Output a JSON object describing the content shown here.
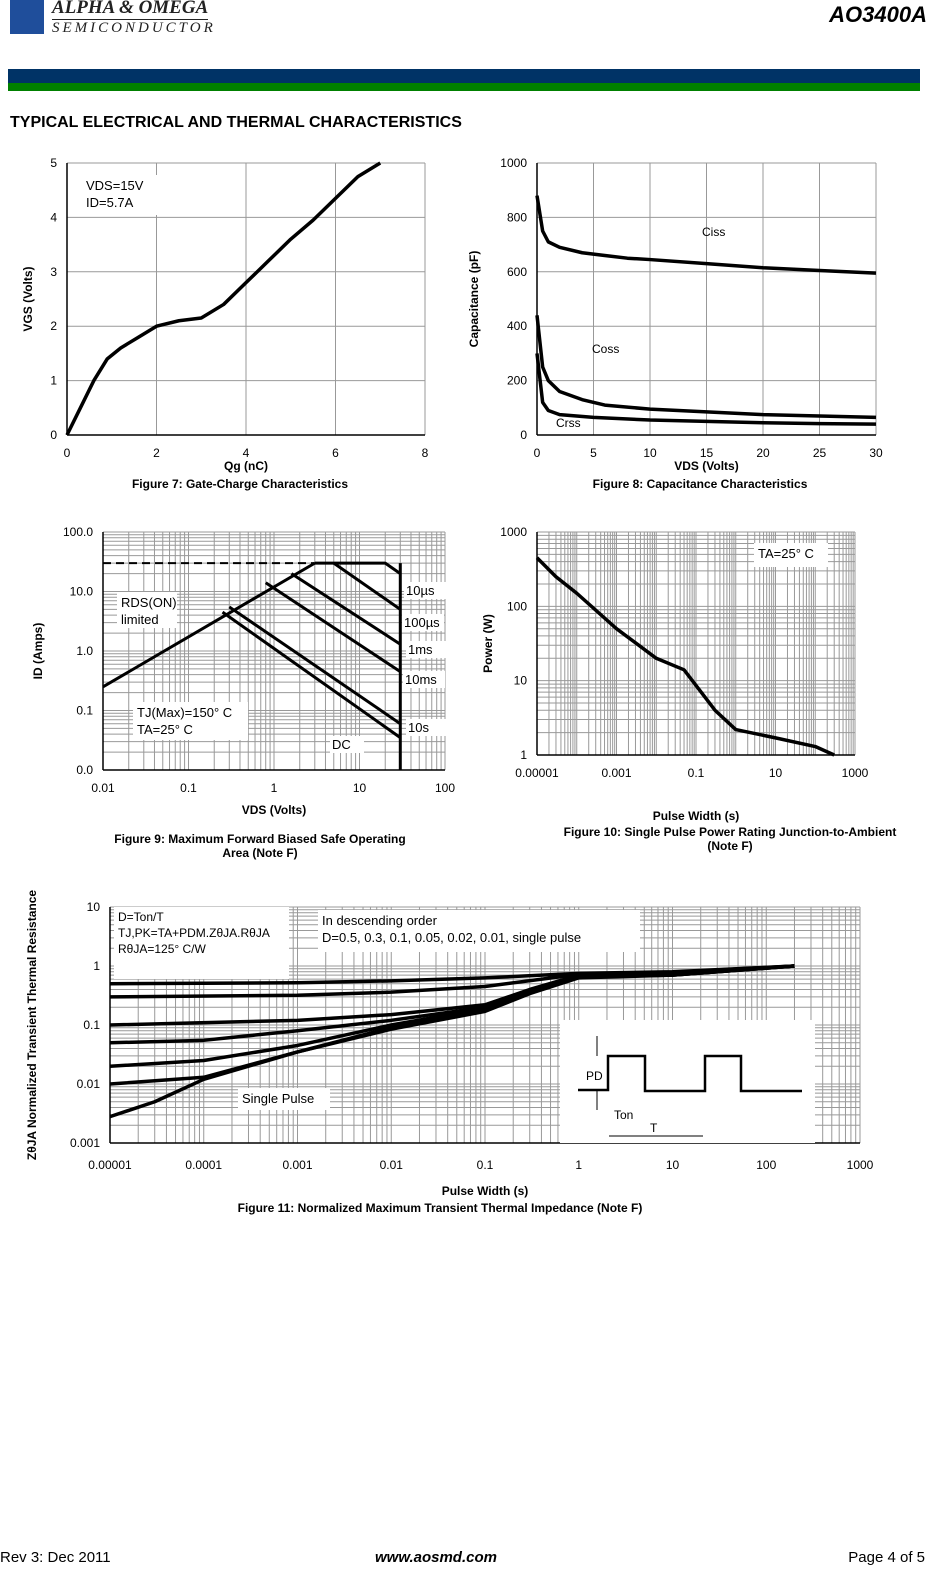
{
  "header": {
    "brand_line1": "ALPHA & OMEGA",
    "brand_line2": "SEMICONDUCTOR",
    "part_number": "AO3400A"
  },
  "section_title": "TYPICAL ELECTRICAL AND THERMAL CHARACTERISTICS",
  "colors": {
    "header_blue": "#003366",
    "header_green": "#008000",
    "logo_blue": "#1f4e9b"
  },
  "chart_data": [
    {
      "id": "fig7",
      "type": "line",
      "caption": "Figure 7: Gate-Charge Characteristics",
      "xlabel": "Qg (nC)",
      "ylabel": "VGS (Volts)",
      "xscale": "linear",
      "yscale": "linear",
      "xlim": [
        0,
        8
      ],
      "ylim": [
        0,
        5
      ],
      "xticks": [
        0,
        2,
        4,
        6,
        8
      ],
      "xticklabels": [
        "0",
        "2",
        "4",
        "6",
        "8"
      ],
      "yticks": [
        0,
        1,
        2,
        3,
        4,
        5
      ],
      "yticklabels": [
        "0",
        "1",
        "2",
        "3",
        "4",
        "5"
      ],
      "grid": true,
      "annotations": [
        "VDS=15V",
        "ID=5.7A"
      ],
      "series": [
        {
          "x": [
            0,
            0.3,
            0.6,
            0.9,
            1.2,
            1.6,
            2,
            2.5,
            3,
            3.5,
            4,
            4.5,
            5,
            5.5,
            6,
            6.5,
            7
          ],
          "y": [
            0,
            0.5,
            1.0,
            1.4,
            1.6,
            1.8,
            2.0,
            2.1,
            2.15,
            2.4,
            2.8,
            3.2,
            3.6,
            3.95,
            4.35,
            4.75,
            5.0
          ]
        }
      ]
    },
    {
      "id": "fig8",
      "type": "line",
      "caption": "Figure 8: Capacitance Characteristics",
      "xlabel": "VDS (Volts)",
      "ylabel": "Capacitance (pF)",
      "xscale": "linear",
      "yscale": "linear",
      "xlim": [
        0,
        30
      ],
      "ylim": [
        0,
        1000
      ],
      "xticks": [
        0,
        5,
        10,
        15,
        20,
        25,
        30
      ],
      "xticklabels": [
        "0",
        "5",
        "10",
        "15",
        "20",
        "25",
        "30"
      ],
      "yticks": [
        0,
        200,
        400,
        600,
        800,
        1000
      ],
      "yticklabels": [
        "0",
        "200",
        "400",
        "600",
        "800",
        "1000"
      ],
      "grid": true,
      "series": [
        {
          "name": "Ciss",
          "x": [
            0,
            0.5,
            1,
            2,
            4,
            6,
            8,
            10,
            15,
            20,
            25,
            30
          ],
          "y": [
            880,
            750,
            710,
            690,
            670,
            660,
            650,
            645,
            630,
            615,
            605,
            595
          ]
        },
        {
          "name": "Coss",
          "x": [
            0,
            0.5,
            1,
            2,
            4,
            6,
            10,
            15,
            20,
            25,
            30
          ],
          "y": [
            440,
            250,
            200,
            160,
            130,
            110,
            95,
            85,
            75,
            70,
            65
          ]
        },
        {
          "name": "Crss",
          "x": [
            0,
            0.5,
            1,
            2,
            5,
            10,
            15,
            20,
            25,
            30
          ],
          "y": [
            300,
            120,
            90,
            75,
            65,
            55,
            50,
            45,
            42,
            40
          ]
        }
      ]
    },
    {
      "id": "fig9",
      "type": "line",
      "caption": "Figure 9: Maximum Forward Biased Safe Operating Area (Note F)",
      "xlabel": "VDS (Volts)",
      "ylabel": "ID (Amps)",
      "xscale": "log",
      "yscale": "log",
      "xlim": [
        0.01,
        100
      ],
      "ylim": [
        0.01,
        100
      ],
      "xticks": [
        0.01,
        0.1,
        1,
        10,
        100
      ],
      "xticklabels": [
        "0.01",
        "0.1",
        "1",
        "10",
        "100"
      ],
      "yticks": [
        0.01,
        0.1,
        1,
        10,
        100
      ],
      "yticklabels": [
        "0.0",
        "0.1",
        "1.0",
        "10.0",
        "100.0"
      ],
      "grid": true,
      "annotations": [
        "RDS(ON) limited",
        "TJ(Max)=150° C",
        "TA=25° C"
      ],
      "series": [
        {
          "name": "RDS(ON) limited",
          "x": [
            0.01,
            3
          ],
          "y": [
            0.25,
            30
          ]
        },
        {
          "name": "10µs",
          "x": [
            3,
            20,
            30
          ],
          "y": [
            30,
            30,
            20
          ]
        },
        {
          "name": "100µs",
          "x": [
            5,
            30
          ],
          "y": [
            30,
            5
          ]
        },
        {
          "name": "1ms",
          "x": [
            1.6,
            30
          ],
          "y": [
            20,
            1.3
          ]
        },
        {
          "name": "10ms",
          "x": [
            0.8,
            30
          ],
          "y": [
            14,
            0.45
          ]
        },
        {
          "name": "10s",
          "x": [
            0.3,
            30
          ],
          "y": [
            5.5,
            0.06
          ]
        },
        {
          "name": "DC",
          "x": [
            0.25,
            30
          ],
          "y": [
            4.5,
            0.035
          ]
        }
      ]
    },
    {
      "id": "fig10",
      "type": "line",
      "caption": "Figure 10: Single Pulse Power Rating Junction-to-Ambient (Note F)",
      "xlabel": "Pulse Width (s)",
      "ylabel": "Power (W)",
      "xscale": "log",
      "yscale": "log",
      "xlim": [
        1e-05,
        1000
      ],
      "ylim": [
        1,
        1000
      ],
      "xticks": [
        1e-05,
        0.001,
        0.1,
        10,
        1000
      ],
      "xticklabels": [
        "0.00001",
        "0.001",
        "0.1",
        "10",
        "1000"
      ],
      "yticks": [
        1,
        10,
        100,
        1000
      ],
      "yticklabels": [
        "1",
        "10",
        "100",
        "1000"
      ],
      "grid": true,
      "annotations": [
        "TA=25° C"
      ],
      "series": [
        {
          "x": [
            1e-05,
            3e-05,
            0.0001,
            0.001,
            0.01,
            0.05,
            0.3,
            1,
            10,
            100,
            300
          ],
          "y": [
            450,
            250,
            150,
            50,
            20,
            14,
            4,
            2.2,
            1.7,
            1.3,
            1
          ]
        }
      ]
    },
    {
      "id": "fig11",
      "type": "line",
      "caption": "Figure 11: Normalized Maximum Transient Thermal Impedance (Note F)",
      "xlabel": "Pulse Width (s)",
      "ylabel": "ZθJA Normalized Transient Thermal Resistance",
      "xscale": "log",
      "yscale": "log",
      "xlim": [
        1e-05,
        1000
      ],
      "ylim": [
        0.001,
        10
      ],
      "xticks": [
        1e-05,
        0.0001,
        0.001,
        0.01,
        0.1,
        1,
        10,
        100,
        1000
      ],
      "xticklabels": [
        "0.00001",
        "0.0001",
        "0.001",
        "0.01",
        "0.1",
        "1",
        "10",
        "100",
        "1000"
      ],
      "yticks": [
        0.001,
        0.01,
        0.1,
        1,
        10
      ],
      "yticklabels": [
        "0.001",
        "0.01",
        "0.1",
        "1",
        "10"
      ],
      "grid": true,
      "annotations": [
        "D=Ton/T",
        "TJ,PK=TA+PDM.ZθJA.RθJA",
        "RθJA=125° C/W",
        "In descending order",
        "D=0.5, 0.3, 0.1, 0.05, 0.02, 0.01, single pulse",
        "Single Pulse",
        "PD",
        "Ton",
        "T"
      ],
      "series": [
        {
          "name": "D=0.5",
          "x": [
            1e-05,
            0.001,
            0.01,
            0.1,
            1,
            10,
            200
          ],
          "y": [
            0.5,
            0.52,
            0.56,
            0.63,
            0.75,
            0.8,
            1
          ]
        },
        {
          "name": "D=0.3",
          "x": [
            1e-05,
            0.001,
            0.01,
            0.1,
            1,
            10,
            200
          ],
          "y": [
            0.3,
            0.32,
            0.36,
            0.45,
            0.72,
            0.78,
            1
          ]
        },
        {
          "name": "D=0.1",
          "x": [
            1e-05,
            0.001,
            0.01,
            0.1,
            0.3,
            1,
            10,
            200
          ],
          "y": [
            0.1,
            0.12,
            0.15,
            0.22,
            0.4,
            0.7,
            0.75,
            1
          ]
        },
        {
          "name": "D=0.05",
          "x": [
            1e-05,
            0.0001,
            0.001,
            0.01,
            0.1,
            0.3,
            1,
            10,
            200
          ],
          "y": [
            0.05,
            0.055,
            0.08,
            0.12,
            0.2,
            0.38,
            0.68,
            0.72,
            1
          ]
        },
        {
          "name": "D=0.02",
          "x": [
            1e-05,
            0.0001,
            0.001,
            0.01,
            0.1,
            0.3,
            1,
            10,
            200
          ],
          "y": [
            0.02,
            0.025,
            0.045,
            0.1,
            0.19,
            0.36,
            0.66,
            0.7,
            1
          ]
        },
        {
          "name": "D=0.01",
          "x": [
            1e-05,
            0.0001,
            0.001,
            0.01,
            0.1,
            0.3,
            1,
            10,
            200
          ],
          "y": [
            0.01,
            0.013,
            0.035,
            0.09,
            0.18,
            0.35,
            0.65,
            0.7,
            1
          ]
        },
        {
          "name": "single pulse",
          "x": [
            1e-05,
            3e-05,
            0.0001,
            0.001,
            0.01,
            0.1,
            0.3,
            1,
            10,
            200
          ],
          "y": [
            0.0028,
            0.005,
            0.012,
            0.035,
            0.085,
            0.17,
            0.34,
            0.63,
            0.7,
            1
          ]
        }
      ]
    }
  ],
  "fig8_labels": {
    "ciss": "Ciss",
    "coss": "Coss",
    "crss": "Crss"
  },
  "fig9_labels": [
    "10µs",
    "100µs",
    "1ms",
    "10ms",
    "10s",
    "DC"
  ],
  "footer": {
    "revision": "Rev 3: Dec 2011",
    "website": "www.aosmd.com",
    "page": "Page 4 of 5"
  }
}
